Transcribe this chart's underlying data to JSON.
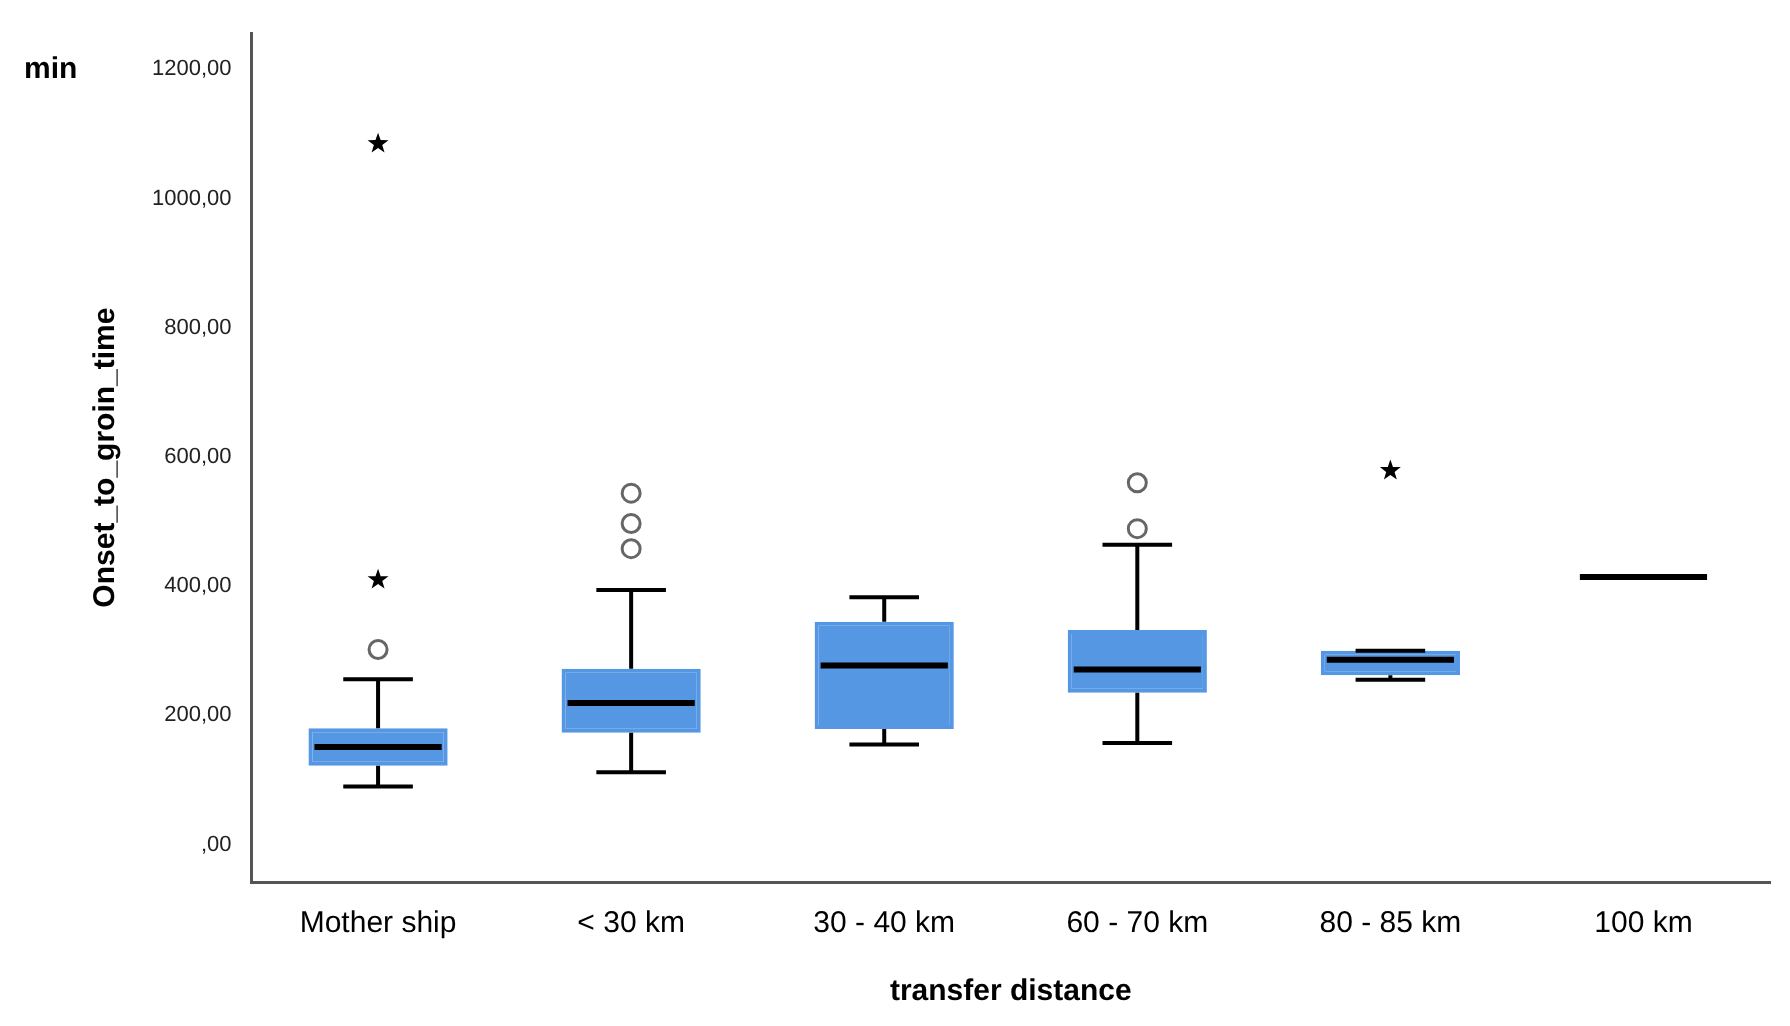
{
  "chart_data": {
    "type": "box",
    "xlabel": "transfer distance",
    "ylabel": "Onset_to_groin_time",
    "annotations": [
      "min"
    ],
    "categories": [
      "Mother ship",
      "< 30 km",
      "30 - 40 km",
      "60 - 70 km",
      "80 - 85 km",
      "100 km"
    ],
    "series": [
      {
        "type": "box",
        "colors": [
          "#5597e3",
          "#5597e3",
          "#5597e3",
          "#5597e3",
          "#5597e3",
          "#000000"
        ],
        "boxes": [
          {
            "low": 90,
            "q1": 122,
            "median": 151,
            "q3": 180,
            "high": 256,
            "outliers": [
              302
            ]
          },
          {
            "low": 112,
            "q1": 173,
            "median": 219,
            "q3": 272,
            "high": 394,
            "outliers": [
              458,
              497,
              544
            ]
          },
          {
            "low": 155,
            "q1": 179,
            "median": 277,
            "q3": 345,
            "high": 383
          },
          {
            "low": 157,
            "q1": 235,
            "median": 271,
            "q3": 332,
            "high": 464,
            "outliers": [
              489,
              560
            ]
          },
          {
            "low": 255,
            "q1": 262,
            "median": 286,
            "q3": 300,
            "high": 300
          },
          {
            "low": 414,
            "q1": 414,
            "median": 414,
            "q3": 414,
            "high": 414
          }
        ]
      },
      {
        "type": "scatter",
        "marker": "star",
        "color": "#000000",
        "x": [
          "Mother ship",
          "Mother ship",
          "80 - 85 km"
        ],
        "values": [
          1085,
          410,
          579
        ]
      }
    ],
    "ylim": [
      -58,
      1256
    ],
    "yticks": [
      {
        "value": 0,
        "label": ",00"
      },
      {
        "value": 200,
        "label": "200,00"
      },
      {
        "value": 400,
        "label": "400,00"
      },
      {
        "value": 600,
        "label": "600,00"
      },
      {
        "value": 800,
        "label": "800,00"
      },
      {
        "value": 1000,
        "label": "1000,00"
      },
      {
        "value": 1200,
        "label": "1200,00"
      }
    ],
    "grid": false,
    "legend": false
  }
}
